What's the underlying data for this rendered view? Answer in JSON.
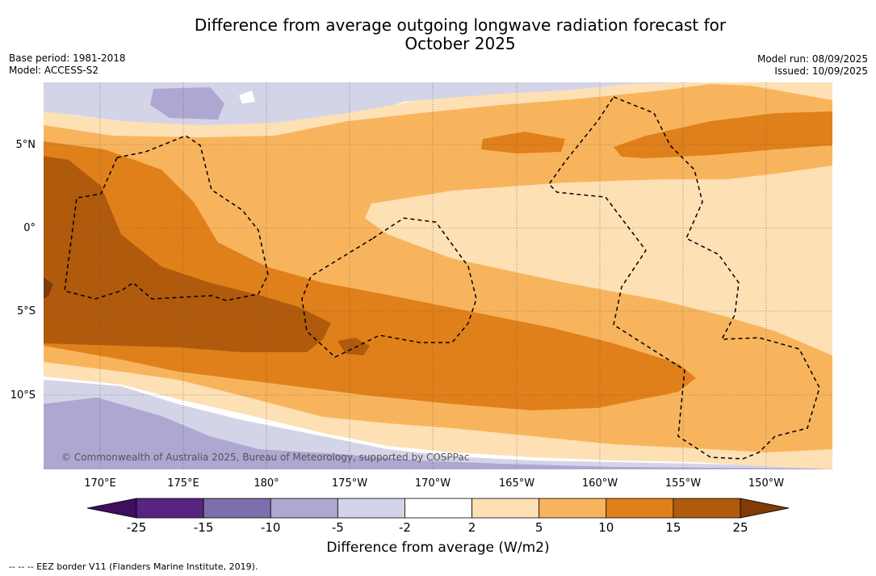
{
  "title_line1": "Difference from average outgoing longwave radiation forecast for",
  "title_line2": "October 2025",
  "base_period": "Base period: 1981-2018",
  "model": "Model: ACCESS-S2",
  "model_run": "Model run: 08/09/2025",
  "issued": "Issued: 10/09/2025",
  "copyright": "© Commonwealth of Australia 2025, Bureau of Meteorology, supported by COSPPac",
  "lat_labels": [
    "5°N",
    "0°",
    "5°S",
    "10°S"
  ],
  "lon_labels": [
    "170°E",
    "175°E",
    "180°",
    "175°W",
    "170°W",
    "165°W",
    "160°W",
    "155°W",
    "150°W"
  ],
  "colorbar": {
    "label": "Difference from average (W/m2)",
    "ticks": [
      "-25",
      "-15",
      "-10",
      "-5",
      "-2",
      "2",
      "5",
      "10",
      "15",
      "25"
    ],
    "colors": [
      "#3f0e5c",
      "#57247f",
      "#7c6fab",
      "#ada7d1",
      "#d4d4e8",
      "#ffffff",
      "#fde0b4",
      "#f8b45d",
      "#e0801a",
      "#b05a0d",
      "#7f3b08"
    ]
  },
  "footer": "-- -- -- EEZ border V11 (Flanders Marine Institute, 2019)."
}
